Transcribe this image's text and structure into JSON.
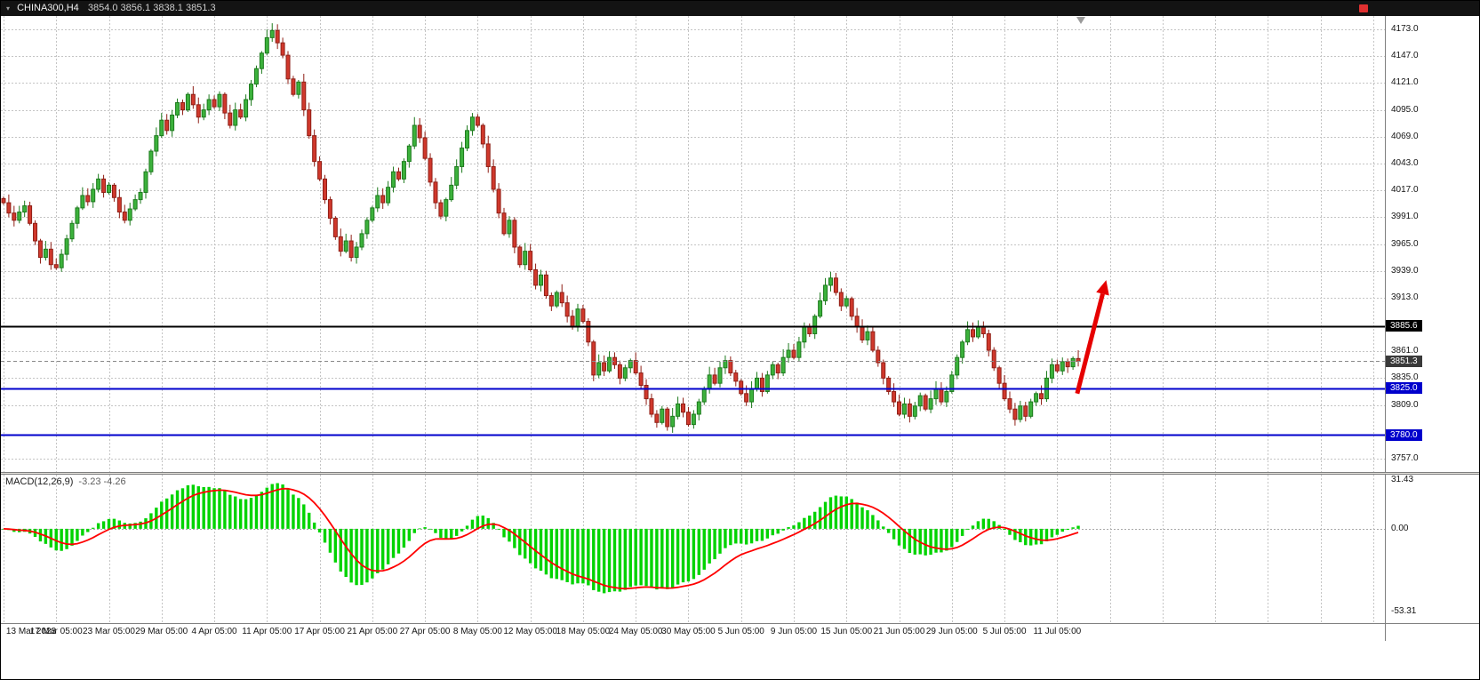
{
  "titlebar": {
    "symbol": "CHINA300,H4",
    "ohlc": "3854.0 3856.1 3838.1 3851.3"
  },
  "macd": {
    "label": "MACD(12,26,9)",
    "values_text": "-3.23 -4.26",
    "scale_labels": [
      "31.43",
      "0.00",
      "-53.31"
    ],
    "scale_max": 31.43,
    "scale_min": -53.31
  },
  "chart_data": {
    "type": "candlestick",
    "symbol": "CHINA300",
    "timeframe": "H4",
    "title": "CHINA300,H4 3854.0 3856.1 3838.1 3851.3",
    "current_bar_ohlc": {
      "open": 3854.0,
      "high": 3856.1,
      "low": 3838.1,
      "close": 3851.3
    },
    "ylim": [
      3744,
      4186
    ],
    "price_ticks": [
      4173.0,
      4147.0,
      4121.0,
      4095.0,
      4069.0,
      4043.0,
      4017.0,
      3991.0,
      3965.0,
      3939.0,
      3913.0,
      3861.0,
      3835.0,
      3809.0,
      3757.0
    ],
    "x_labels": [
      "13 Mar 2023",
      "17 Mar 05:00",
      "23 Mar 05:00",
      "29 Mar 05:00",
      "4 Apr 05:00",
      "11 Apr 05:00",
      "17 Apr 05:00",
      "21 Apr 05:00",
      "27 Apr 05:00",
      "8 May 05:00",
      "12 May 05:00",
      "18 May 05:00",
      "24 May 05:00",
      "30 May 05:00",
      "5 Jun 05:00",
      "9 Jun 05:00",
      "15 Jun 05:00",
      "21 Jun 05:00",
      "29 Jun 05:00",
      "5 Jul 05:00",
      "11 Jul 05:00"
    ],
    "bars_per_label": 10,
    "closes": [
      4005,
      3995,
      3988,
      3996,
      4002,
      3985,
      3968,
      3952,
      3960,
      3945,
      3942,
      3955,
      3970,
      3985,
      4000,
      4012,
      4006,
      4018,
      4028,
      4015,
      4022,
      4010,
      3996,
      3988,
      3999,
      4008,
      4015,
      4035,
      4055,
      4070,
      4085,
      4075,
      4090,
      4102,
      4095,
      4110,
      4100,
      4088,
      4095,
      4105,
      4098,
      4110,
      4092,
      4080,
      4095,
      4088,
      4105,
      4120,
      4135,
      4150,
      4165,
      4172,
      4160,
      4148,
      4125,
      4110,
      4122,
      4095,
      4070,
      4045,
      4028,
      4008,
      3990,
      3972,
      3958,
      3968,
      3952,
      3962,
      3975,
      3988,
      4000,
      4012,
      4005,
      4020,
      4035,
      4028,
      4045,
      4060,
      4080,
      4068,
      4048,
      4025,
      4005,
      3992,
      4008,
      4022,
      4040,
      4058,
      4075,
      4088,
      4080,
      4062,
      4040,
      4018,
      3995,
      3975,
      3988,
      3962,
      3945,
      3958,
      3940,
      3925,
      3935,
      3915,
      3905,
      3918,
      3908,
      3895,
      3885,
      3902,
      3890,
      3870,
      3838,
      3850,
      3842,
      3855,
      3848,
      3835,
      3845,
      3852,
      3840,
      3828,
      3815,
      3800,
      3792,
      3805,
      3788,
      3798,
      3810,
      3802,
      3790,
      3800,
      3812,
      3825,
      3838,
      3830,
      3845,
      3852,
      3840,
      3832,
      3820,
      3812,
      3825,
      3835,
      3822,
      3838,
      3848,
      3840,
      3855,
      3862,
      3855,
      3870,
      3885,
      3878,
      3895,
      3910,
      3925,
      3932,
      3918,
      3905,
      3912,
      3895,
      3885,
      3872,
      3880,
      3862,
      3850,
      3835,
      3822,
      3812,
      3800,
      3810,
      3798,
      3808,
      3818,
      3805,
      3815,
      3825,
      3812,
      3822,
      3838,
      3855,
      3870,
      3882,
      3875,
      3885,
      3878,
      3862,
      3845,
      3830,
      3815,
      3805,
      3795,
      3808,
      3798,
      3812,
      3820,
      3815,
      3835,
      3848,
      3842,
      3851,
      3846,
      3854,
      3851.3
    ],
    "levels": [
      {
        "price": 3885.6,
        "line_color": "#000000",
        "line_width": 2,
        "dash": "",
        "badge_bg": "#000000",
        "label": "3885.6"
      },
      {
        "price": 3851.3,
        "line_color": "#8a8a8a",
        "line_width": 1,
        "dash": "4,3",
        "badge_bg": "#3a3a3a",
        "label": "3851.3"
      },
      {
        "price": 3825.0,
        "line_color": "#0000cc",
        "line_width": 2,
        "dash": "",
        "badge_bg": "#0000cc",
        "label": "3825.0"
      },
      {
        "price": 3780.0,
        "line_color": "#0000cc",
        "line_width": 2,
        "dash": "",
        "badge_bg": "#0000cc",
        "label": "3780.0"
      }
    ],
    "annotation": {
      "type": "up-arrow",
      "from_bar": 204.3,
      "from_price": 3820,
      "to_bar": 209.8,
      "to_price": 3930,
      "color": "#e60000",
      "width": 5
    },
    "macd_params": [
      12,
      26,
      9
    ],
    "colors": {
      "bull": "#3cb23c",
      "bull_border": "#1d7a1d",
      "bear": "#d0382c",
      "bear_border": "#8f1f16",
      "hist": "#00d300",
      "signal": "#ff0000",
      "grid": "#c4c4c4",
      "background": "#ffffff"
    }
  }
}
